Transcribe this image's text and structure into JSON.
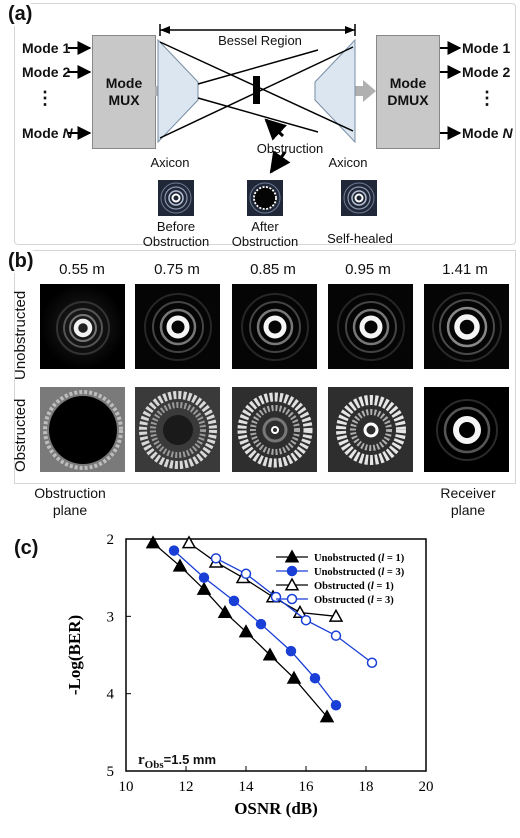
{
  "panel_a": {
    "tag": "(a)",
    "inputs": [
      "Mode 1",
      "Mode 2",
      "⋮",
      "Mode N"
    ],
    "outputs": [
      "Mode 1",
      "Mode 2",
      "⋮",
      "Mode N"
    ],
    "mux_label": "Mode\nMUX",
    "dmux_label": "Mode\nDMUX",
    "bessel_label": "Bessel Region",
    "obstruction_label": "Obstruction",
    "axicon_left": "Axicon",
    "axicon_right": "Axicon",
    "before_label": "Before\nObstruction",
    "after_label": "After\nObstruction",
    "selfhealed_label": "Self-healed"
  },
  "panel_b": {
    "tag": "(b)",
    "distances": [
      "0.55 m",
      "0.75 m",
      "0.85 m",
      "0.95 m",
      "1.41 m"
    ],
    "row_unobstructed": "Unobstructed",
    "row_obstructed": "Obstructed",
    "obstruction_plane": "Obstruction\nplane",
    "receiver_plane": "Receiver\nplane"
  },
  "panel_c": {
    "tag": "(c)",
    "r_obs_main": "r",
    "r_obs_sub": "Obs",
    "r_obs_value": "=1.5 mm"
  },
  "chart_data": {
    "type": "line",
    "xlabel": "OSNR (dB)",
    "ylabel": "-Log(BER)",
    "xlim": [
      10,
      20
    ],
    "ylim": [
      2,
      5
    ],
    "y_reversed": true,
    "xticks": [
      10,
      12,
      14,
      16,
      18,
      20
    ],
    "yticks": [
      2,
      3,
      4,
      5
    ],
    "legend_position": "top-right",
    "series": [
      {
        "name": "Unobstructed (l = 1)",
        "color": "#000000",
        "marker": "filled-triangle",
        "x": [
          10.9,
          11.8,
          12.6,
          13.3,
          14.0,
          14.8,
          15.6,
          16.7
        ],
        "y": [
          2.05,
          2.35,
          2.65,
          2.95,
          3.2,
          3.5,
          3.8,
          4.3
        ]
      },
      {
        "name": "Unobstructed (l = 3)",
        "color": "#1a3fd6",
        "marker": "filled-circle",
        "x": [
          11.6,
          12.6,
          13.6,
          14.5,
          15.5,
          16.3,
          17.0
        ],
        "y": [
          2.15,
          2.5,
          2.8,
          3.1,
          3.45,
          3.8,
          4.15
        ]
      },
      {
        "name": "Obstructed (l = 1)",
        "color": "#000000",
        "marker": "open-triangle",
        "x": [
          12.1,
          13.0,
          13.9,
          14.9,
          15.8,
          17.0
        ],
        "y": [
          2.05,
          2.3,
          2.5,
          2.75,
          2.95,
          3.0
        ]
      },
      {
        "name": "Obstructed (l = 3)",
        "color": "#1a3fd6",
        "marker": "open-circle",
        "x": [
          13.0,
          14.0,
          15.0,
          16.0,
          17.0,
          18.2
        ],
        "y": [
          2.25,
          2.45,
          2.75,
          3.05,
          3.25,
          3.6
        ]
      }
    ]
  }
}
